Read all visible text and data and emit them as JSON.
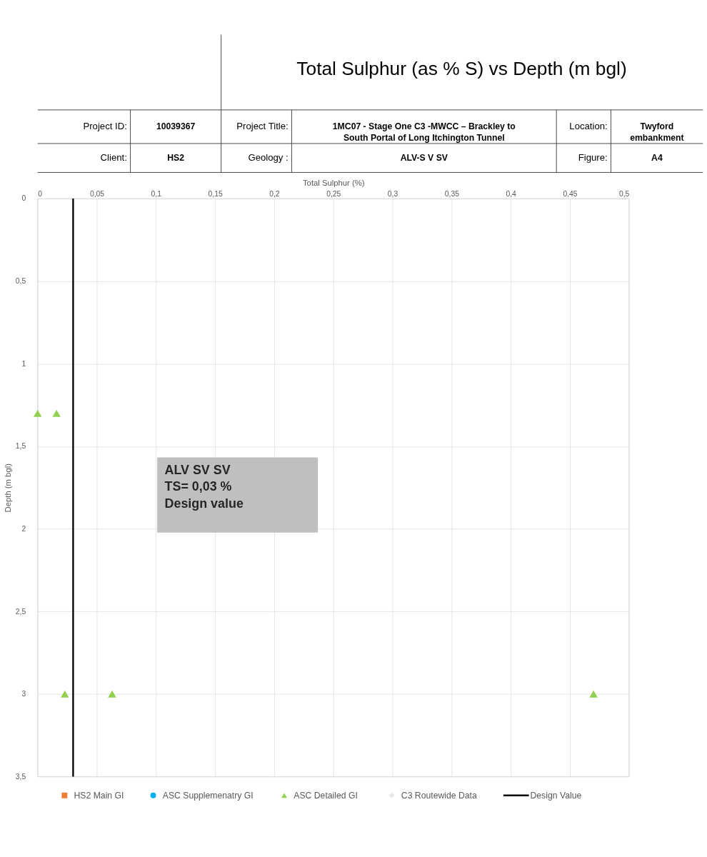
{
  "chart_data": {
    "type": "scatter",
    "title": "Total Sulphur (as % S) vs Depth (m bgl)",
    "xlabel": "Total Sulphur (%)",
    "ylabel": "Depth (m bgl)",
    "xlim": [
      0,
      0.5
    ],
    "xticks": [
      0,
      {
        "value": 0.05,
        "label": "0,05"
      },
      {
        "value": 0.1,
        "label": "0,1"
      },
      {
        "value": 0.15,
        "label": "0,15"
      },
      {
        "value": 0.2,
        "label": "0,2"
      },
      {
        "value": 0.25,
        "label": "0,25"
      },
      {
        "value": 0.3,
        "label": "0,3"
      },
      {
        "value": 0.35,
        "label": "0,35"
      },
      {
        "value": 0.4,
        "label": "0,4"
      },
      {
        "value": 0.45,
        "label": "0,45"
      },
      {
        "value": 0.5,
        "label": "0,5"
      }
    ],
    "ylim": [
      3.5,
      0
    ],
    "yticks": [
      0,
      {
        "value": 0.5,
        "label": "0,5"
      },
      1,
      {
        "value": 1.5,
        "label": "1,5"
      },
      2,
      {
        "value": 2.5,
        "label": "2,5"
      },
      3,
      {
        "value": 3.5,
        "label": "3,5"
      }
    ],
    "grid": true,
    "legend": "bottom",
    "series": [
      {
        "name": "HS2 Main GI",
        "color": "#ed7d31",
        "marker": "square"
      },
      {
        "name": "ASC Supplemenatry GI",
        "color": "#00b0f0",
        "marker": "circle"
      },
      {
        "name": "ASC Detailed GI",
        "color": "#92d050",
        "marker": "triangle",
        "x": [
          0,
          0.016,
          0.023,
          0.063,
          0.47
        ],
        "values": [
          1.3,
          1.3,
          3.0,
          3.0,
          3.0
        ]
      },
      {
        "name": "C3 Routewide Data",
        "color": "#e7e6e6",
        "marker": "diamond"
      }
    ],
    "ref_lines": [
      {
        "axis": "x",
        "value": 0.03,
        "label": "Design Value",
        "color": "#000000",
        "line_style": "solid"
      }
    ],
    "annotations": [
      "Project ID:",
      "10039367",
      "Project Title:",
      "1MC07 - Stage One C3 -MWCC – Brackley to South Portal of Long Itchington Tunnel",
      "Location:",
      "Twyford embankment",
      "Client:",
      "HS2",
      "Geology :",
      "ALV-S V SV",
      "Figure:",
      "A4",
      "ALV SV SV\nTS= 0,03 %\nDesign value"
    ]
  }
}
